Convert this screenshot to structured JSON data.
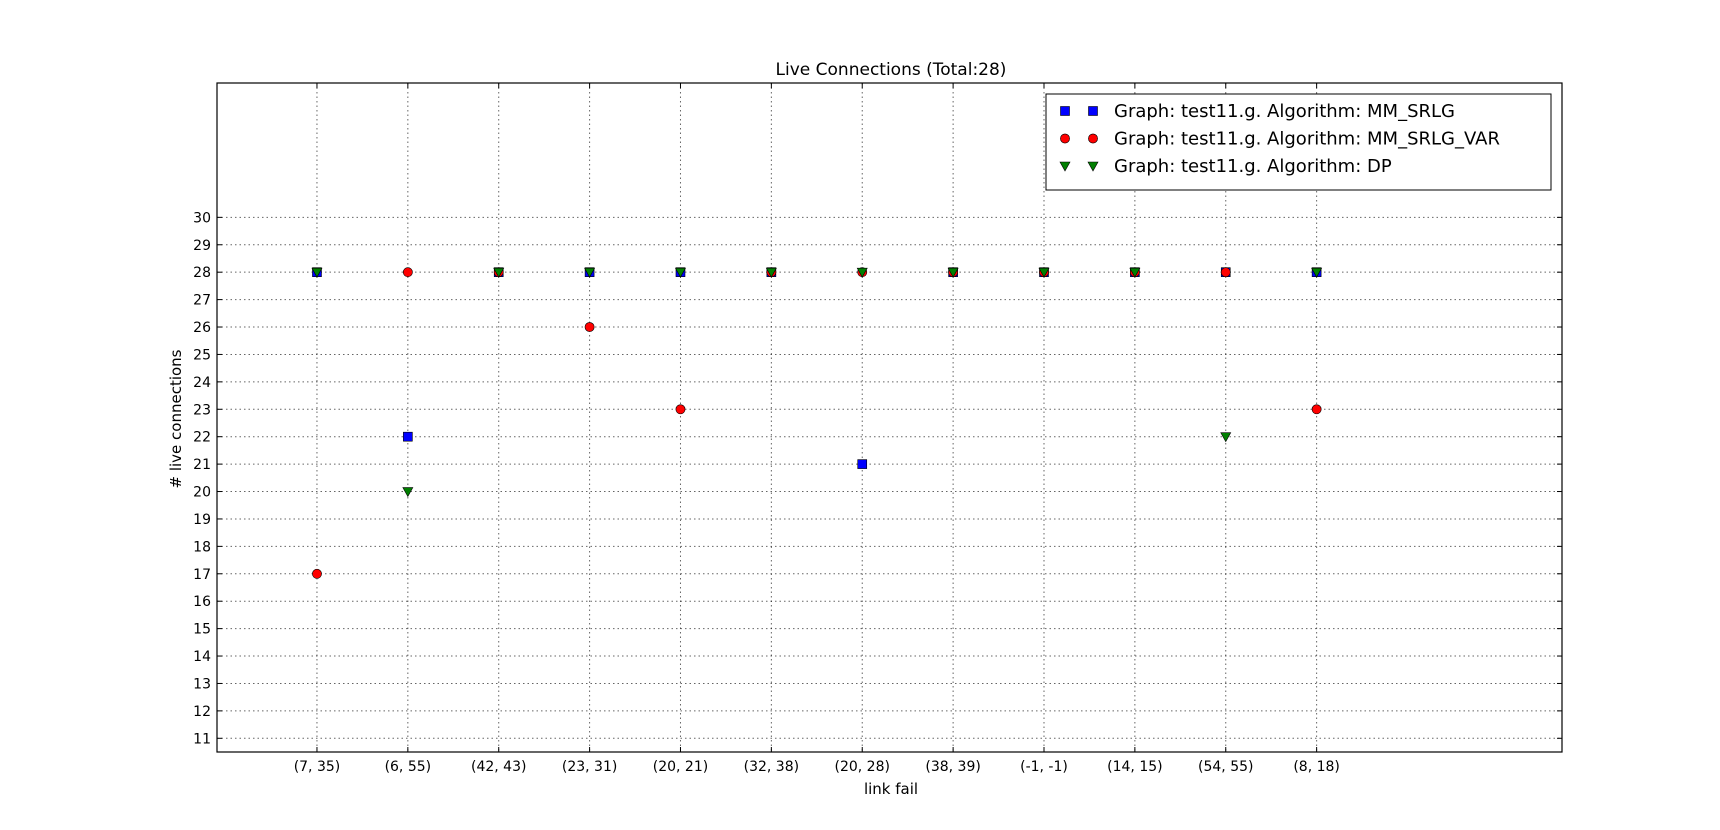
{
  "chart_data": {
    "type": "scatter",
    "title": "Live Connections (Total:28)",
    "xlabel": "link fail",
    "ylabel": "# live connections",
    "categories": [
      "(7, 35)",
      "(6, 55)",
      "(42, 43)",
      "(23, 31)",
      "(20, 21)",
      "(32, 38)",
      "(20, 28)",
      "(38, 39)",
      "(-1, -1)",
      "(14, 15)",
      "(54, 55)",
      "(8, 18)"
    ],
    "yticks": [
      11,
      12,
      13,
      14,
      15,
      16,
      17,
      18,
      19,
      20,
      21,
      22,
      23,
      24,
      25,
      26,
      27,
      28,
      29,
      30
    ],
    "ylim": [
      10.5,
      34.9
    ],
    "xlim": [
      -1.1,
      13.7
    ],
    "grid": true,
    "legend_position": "top-right",
    "series": [
      {
        "name": "Graph: test11.g. Algorithm: MM_SRLG",
        "marker": "square",
        "color": "#0000ff",
        "values": [
          28,
          22,
          28,
          28,
          28,
          28,
          21,
          28,
          28,
          28,
          28,
          28
        ]
      },
      {
        "name": "Graph: test11.g. Algorithm: MM_SRLG_VAR",
        "marker": "circle",
        "color": "#ff0000",
        "values": [
          17,
          28,
          28,
          26,
          23,
          28,
          28,
          28,
          28,
          28,
          28,
          23
        ]
      },
      {
        "name": "Graph: test11.g. Algorithm: DP",
        "marker": "triangle-down",
        "color": "#007f00",
        "values": [
          28,
          20,
          28,
          28,
          28,
          28,
          28,
          28,
          28,
          28,
          22,
          28
        ]
      }
    ]
  }
}
